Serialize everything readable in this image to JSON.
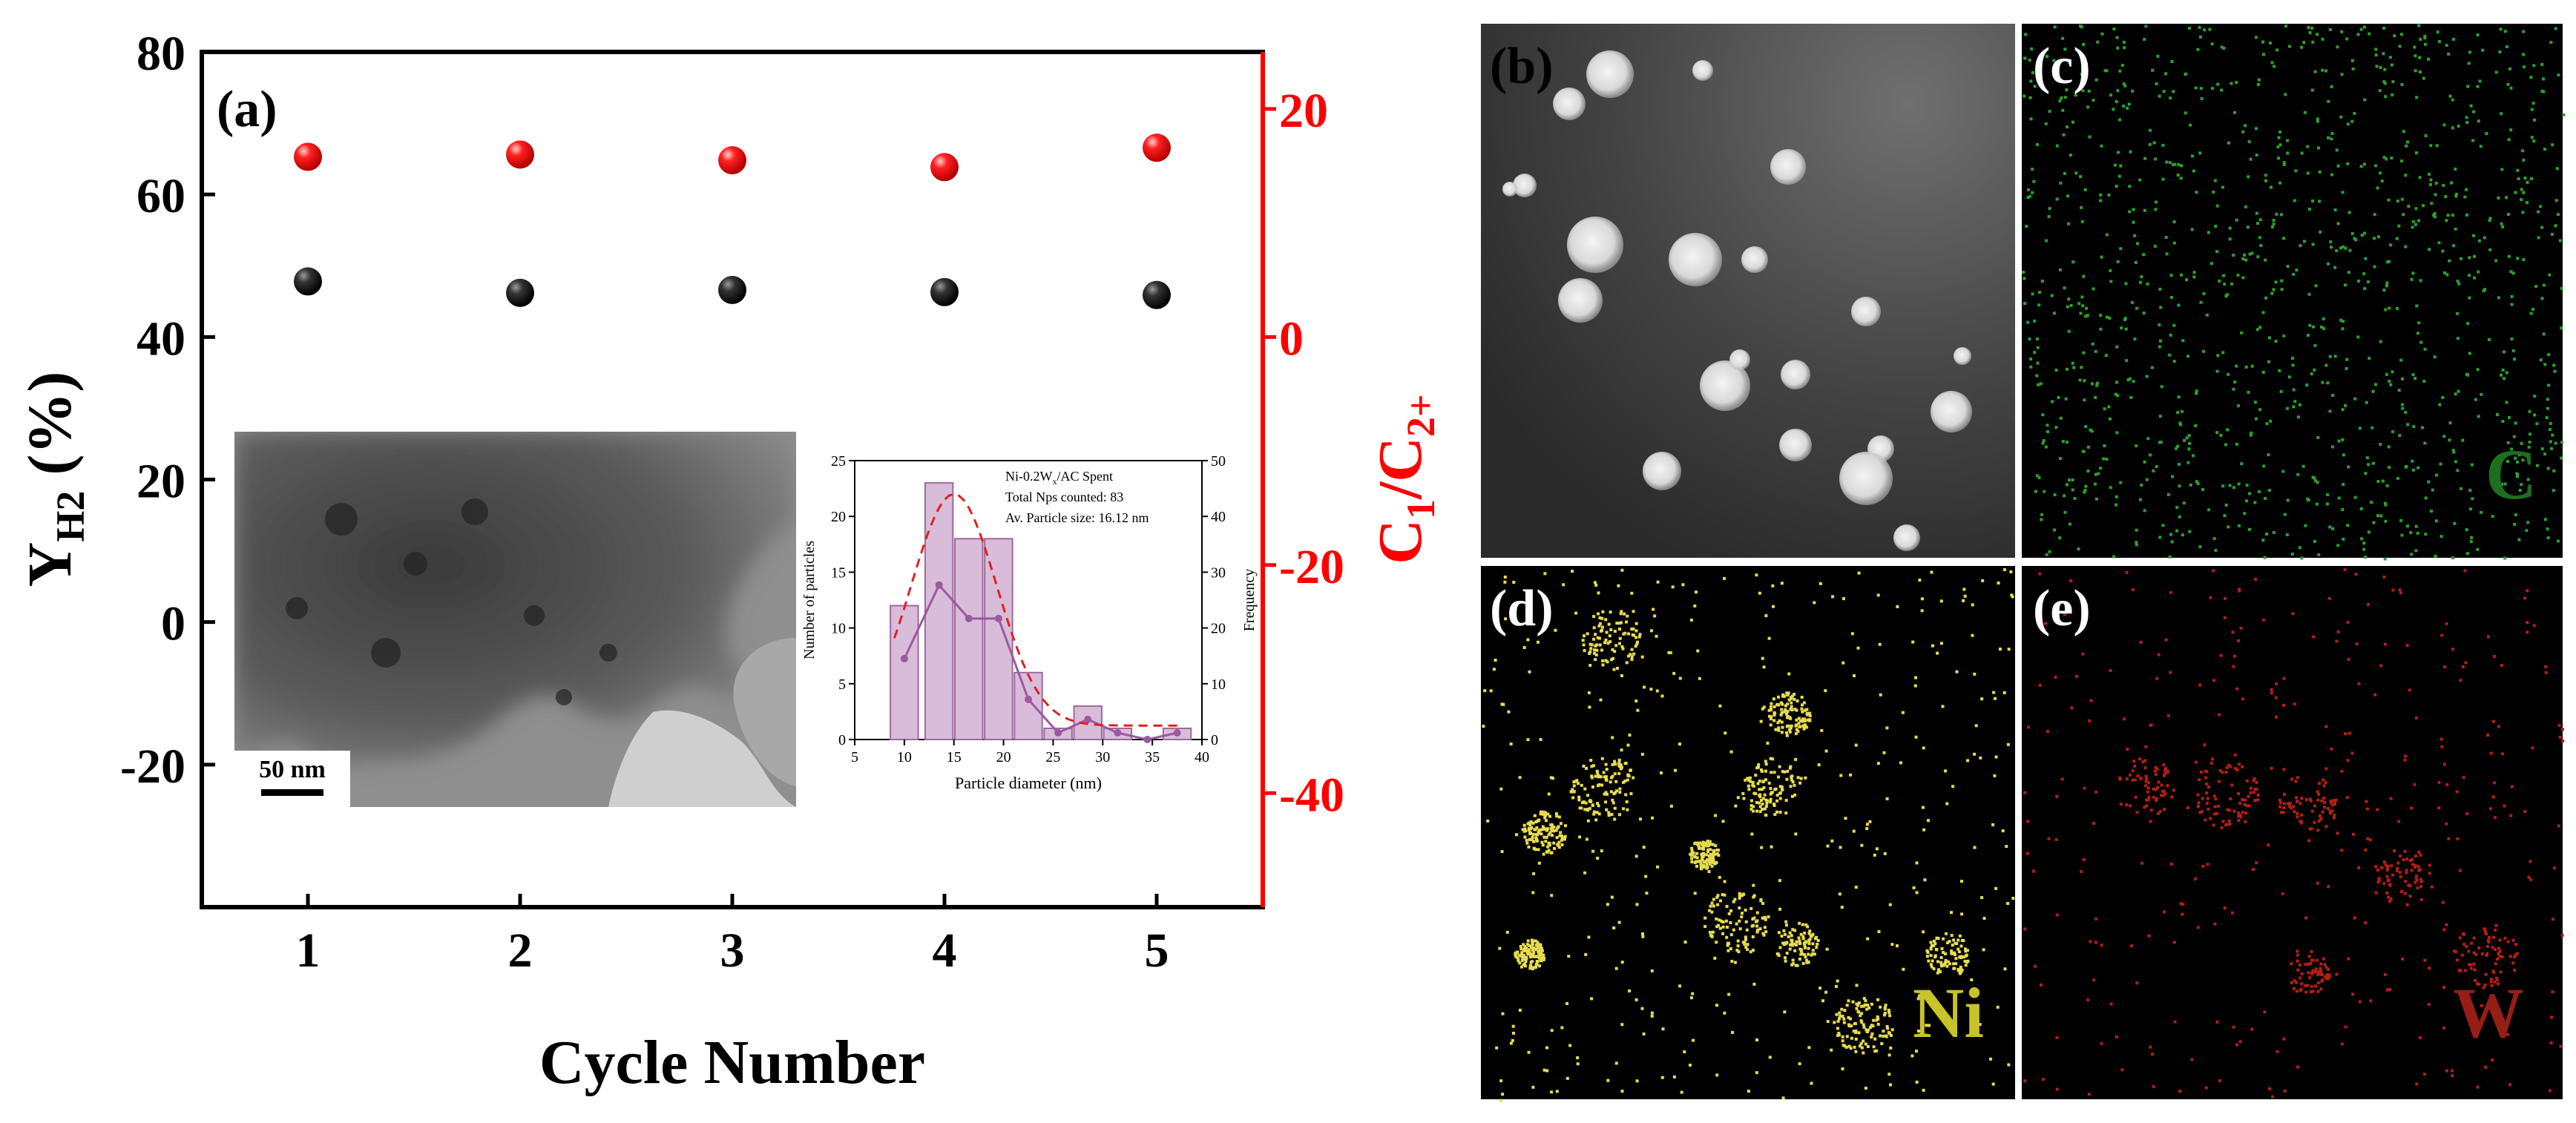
{
  "main_chart": {
    "panel_label": "(a)",
    "xlabel": "Cycle Number",
    "ylabel_left_main": "Y",
    "ylabel_left_sub": "H2",
    "ylabel_left_unit": " (%)",
    "ylabel_right_c": "C",
    "ylabel_right_sub1": "1",
    "ylabel_right_slash": "/C",
    "ylabel_right_sub2": "2+",
    "left_color": "#000000",
    "right_color": "#ff0000"
  },
  "chart_data": [
    {
      "type": "scatter",
      "x": [
        1,
        2,
        3,
        4,
        5
      ],
      "xticks": [
        "1",
        "2",
        "3",
        "4",
        "5"
      ],
      "xlim": [
        0.5,
        5.5
      ],
      "xlabel": "Cycle Number",
      "series": [
        {
          "axis": "left",
          "color": "#000000",
          "values": [
            47.8,
            46.2,
            46.6,
            46.3,
            45.9
          ]
        },
        {
          "axis": "right",
          "color": "#ff0000",
          "values": [
            15.8,
            16.0,
            15.5,
            14.9,
            16.6
          ]
        }
      ],
      "ylim_left": [
        -40,
        80
      ],
      "yticks_left": [
        "-20",
        "0",
        "20",
        "40",
        "60",
        "80"
      ],
      "ylim_right": [
        -50,
        25
      ],
      "yticks_right": [
        "-40",
        "-20",
        "0",
        "20"
      ]
    },
    {
      "type": "bar",
      "title_lines": [
        "Ni-0.2W",
        "x",
        "/AC Spent",
        "Total Nps counted: 83",
        "Av. Particle size: 16.12 nm"
      ],
      "xlabel": "Particle diameter (nm)",
      "ylabel": "Number of particles",
      "ylabel_right": "Frequency",
      "xlim": [
        5,
        40
      ],
      "xticks": [
        "5",
        "10",
        "15",
        "20",
        "25",
        "30",
        "35",
        "40"
      ],
      "ylim": [
        0,
        25
      ],
      "yticks": [
        "0",
        "5",
        "10",
        "15",
        "20",
        "25"
      ],
      "ylim_right": [
        0,
        50
      ],
      "yticks_right": [
        "0",
        "10",
        "20",
        "30",
        "40",
        "50"
      ],
      "bin_centers": [
        10,
        13.5,
        16.5,
        19.5,
        22.5,
        25.5,
        28.5,
        31.5,
        34.5,
        37.5
      ],
      "bin_width": 2.8,
      "values": [
        12,
        23,
        18,
        18,
        6,
        1,
        3,
        1,
        0,
        1
      ],
      "frequency_line": [
        14.5,
        27.7,
        21.7,
        21.7,
        7.2,
        1.2,
        3.6,
        1.2,
        0,
        1.2
      ],
      "fit_curve": "gaussian",
      "fit_mean": 15,
      "fit_peak": 44,
      "fit_sigma": 4.3,
      "fit_baseline": 2.5
    }
  ],
  "tem_image": {
    "scale_bar": "50 nm"
  },
  "eds_panels": [
    {
      "label": "(b)",
      "element": "",
      "color": "#ffffff"
    },
    {
      "label": "(c)",
      "element": "C",
      "color": "#2ea02e",
      "text_color": "#1e6e1e"
    },
    {
      "label": "(d)",
      "element": "Ni",
      "color": "#e6dc50",
      "text_color": "#c8c328"
    },
    {
      "label": "(e)",
      "element": "W",
      "color": "#b41e14",
      "text_color": "#961e14"
    }
  ]
}
